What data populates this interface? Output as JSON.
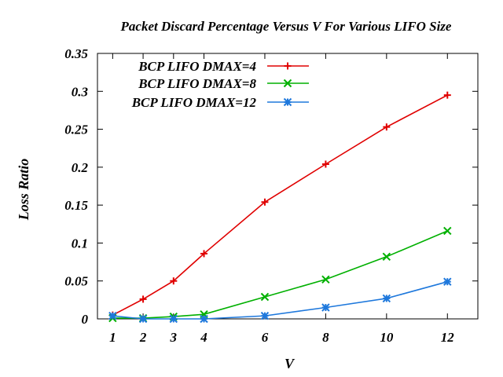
{
  "chart_data": {
    "type": "line",
    "title": "Packet Discard Percentage Versus V For Various LIFO Size",
    "xlabel": "V",
    "ylabel": "Loss Ratio",
    "xlim": [
      0.5,
      13
    ],
    "ylim": [
      0,
      0.35
    ],
    "xticks": [
      1,
      2,
      3,
      4,
      6,
      8,
      10,
      12
    ],
    "xtick_labels": [
      "1",
      "2",
      "3",
      "4",
      "6",
      "8",
      "10",
      "12"
    ],
    "yticks": [
      0,
      0.05,
      0.1,
      0.15,
      0.2,
      0.25,
      0.3,
      0.35
    ],
    "ytick_labels": [
      "0",
      "0.05",
      "0.1",
      "0.15",
      "0.2",
      "0.25",
      "0.3",
      "0.35"
    ],
    "grid": false,
    "legend_position": "top-left",
    "x": [
      1,
      2,
      3,
      4,
      6,
      8,
      10,
      12
    ],
    "series": [
      {
        "name": "BCP LIFO DMAX=4",
        "color": "#e00000",
        "marker": "plus",
        "values": [
          0.005,
          0.026,
          0.05,
          0.086,
          0.154,
          0.204,
          0.253,
          0.295
        ]
      },
      {
        "name": "BCP LIFO DMAX=8",
        "color": "#00b000",
        "marker": "cross",
        "values": [
          0.001,
          0.001,
          0.003,
          0.006,
          0.029,
          0.052,
          0.082,
          0.116
        ]
      },
      {
        "name": "BCP LIFO DMAX=12",
        "color": "#1e78dc",
        "marker": "star",
        "values": [
          0.004,
          0.0,
          0.0,
          0.0,
          0.004,
          0.015,
          0.027,
          0.049
        ]
      }
    ]
  }
}
